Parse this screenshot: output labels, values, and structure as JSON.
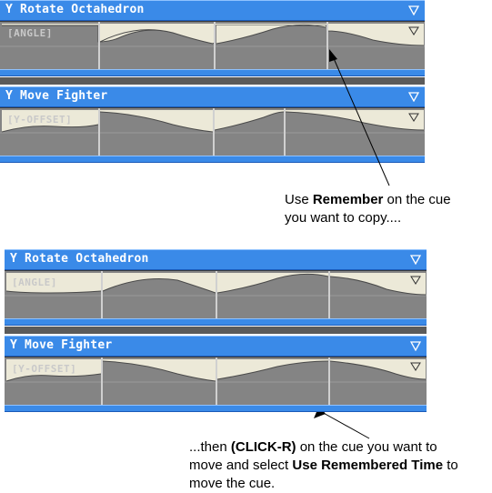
{
  "top": {
    "panel1": {
      "title": "Y Rotate Octahedron",
      "label": "[ANGLE]"
    },
    "panel2": {
      "title": "Y Move Fighter",
      "label": "[Y-OFFSET]"
    },
    "caption": {
      "line1_pre": "Use ",
      "line1_bold": "Remember",
      "line1_post": " on the cue",
      "line2": "you want to copy...."
    }
  },
  "bottom": {
    "panel1": {
      "title": "Y Rotate Octahedron",
      "label": "[ANGLE]"
    },
    "panel2": {
      "title": "Y Move Fighter",
      "label": "[Y-OFFSET]"
    },
    "caption": {
      "line1_pre": "...then ",
      "line1_bold": "(CLICK-R)",
      "line1_post": " on the cue you want to",
      "line2_pre": "move and select ",
      "line2_bold": "Use Remembered Time",
      "line2_post": " to",
      "line3": "move the cue."
    }
  },
  "icons": {
    "dropdown": "dropdown-triangle-icon"
  },
  "colors": {
    "header_blue": "#3a8ae8",
    "track_gray": "#848484",
    "curve_fill": "#ece9d8"
  }
}
